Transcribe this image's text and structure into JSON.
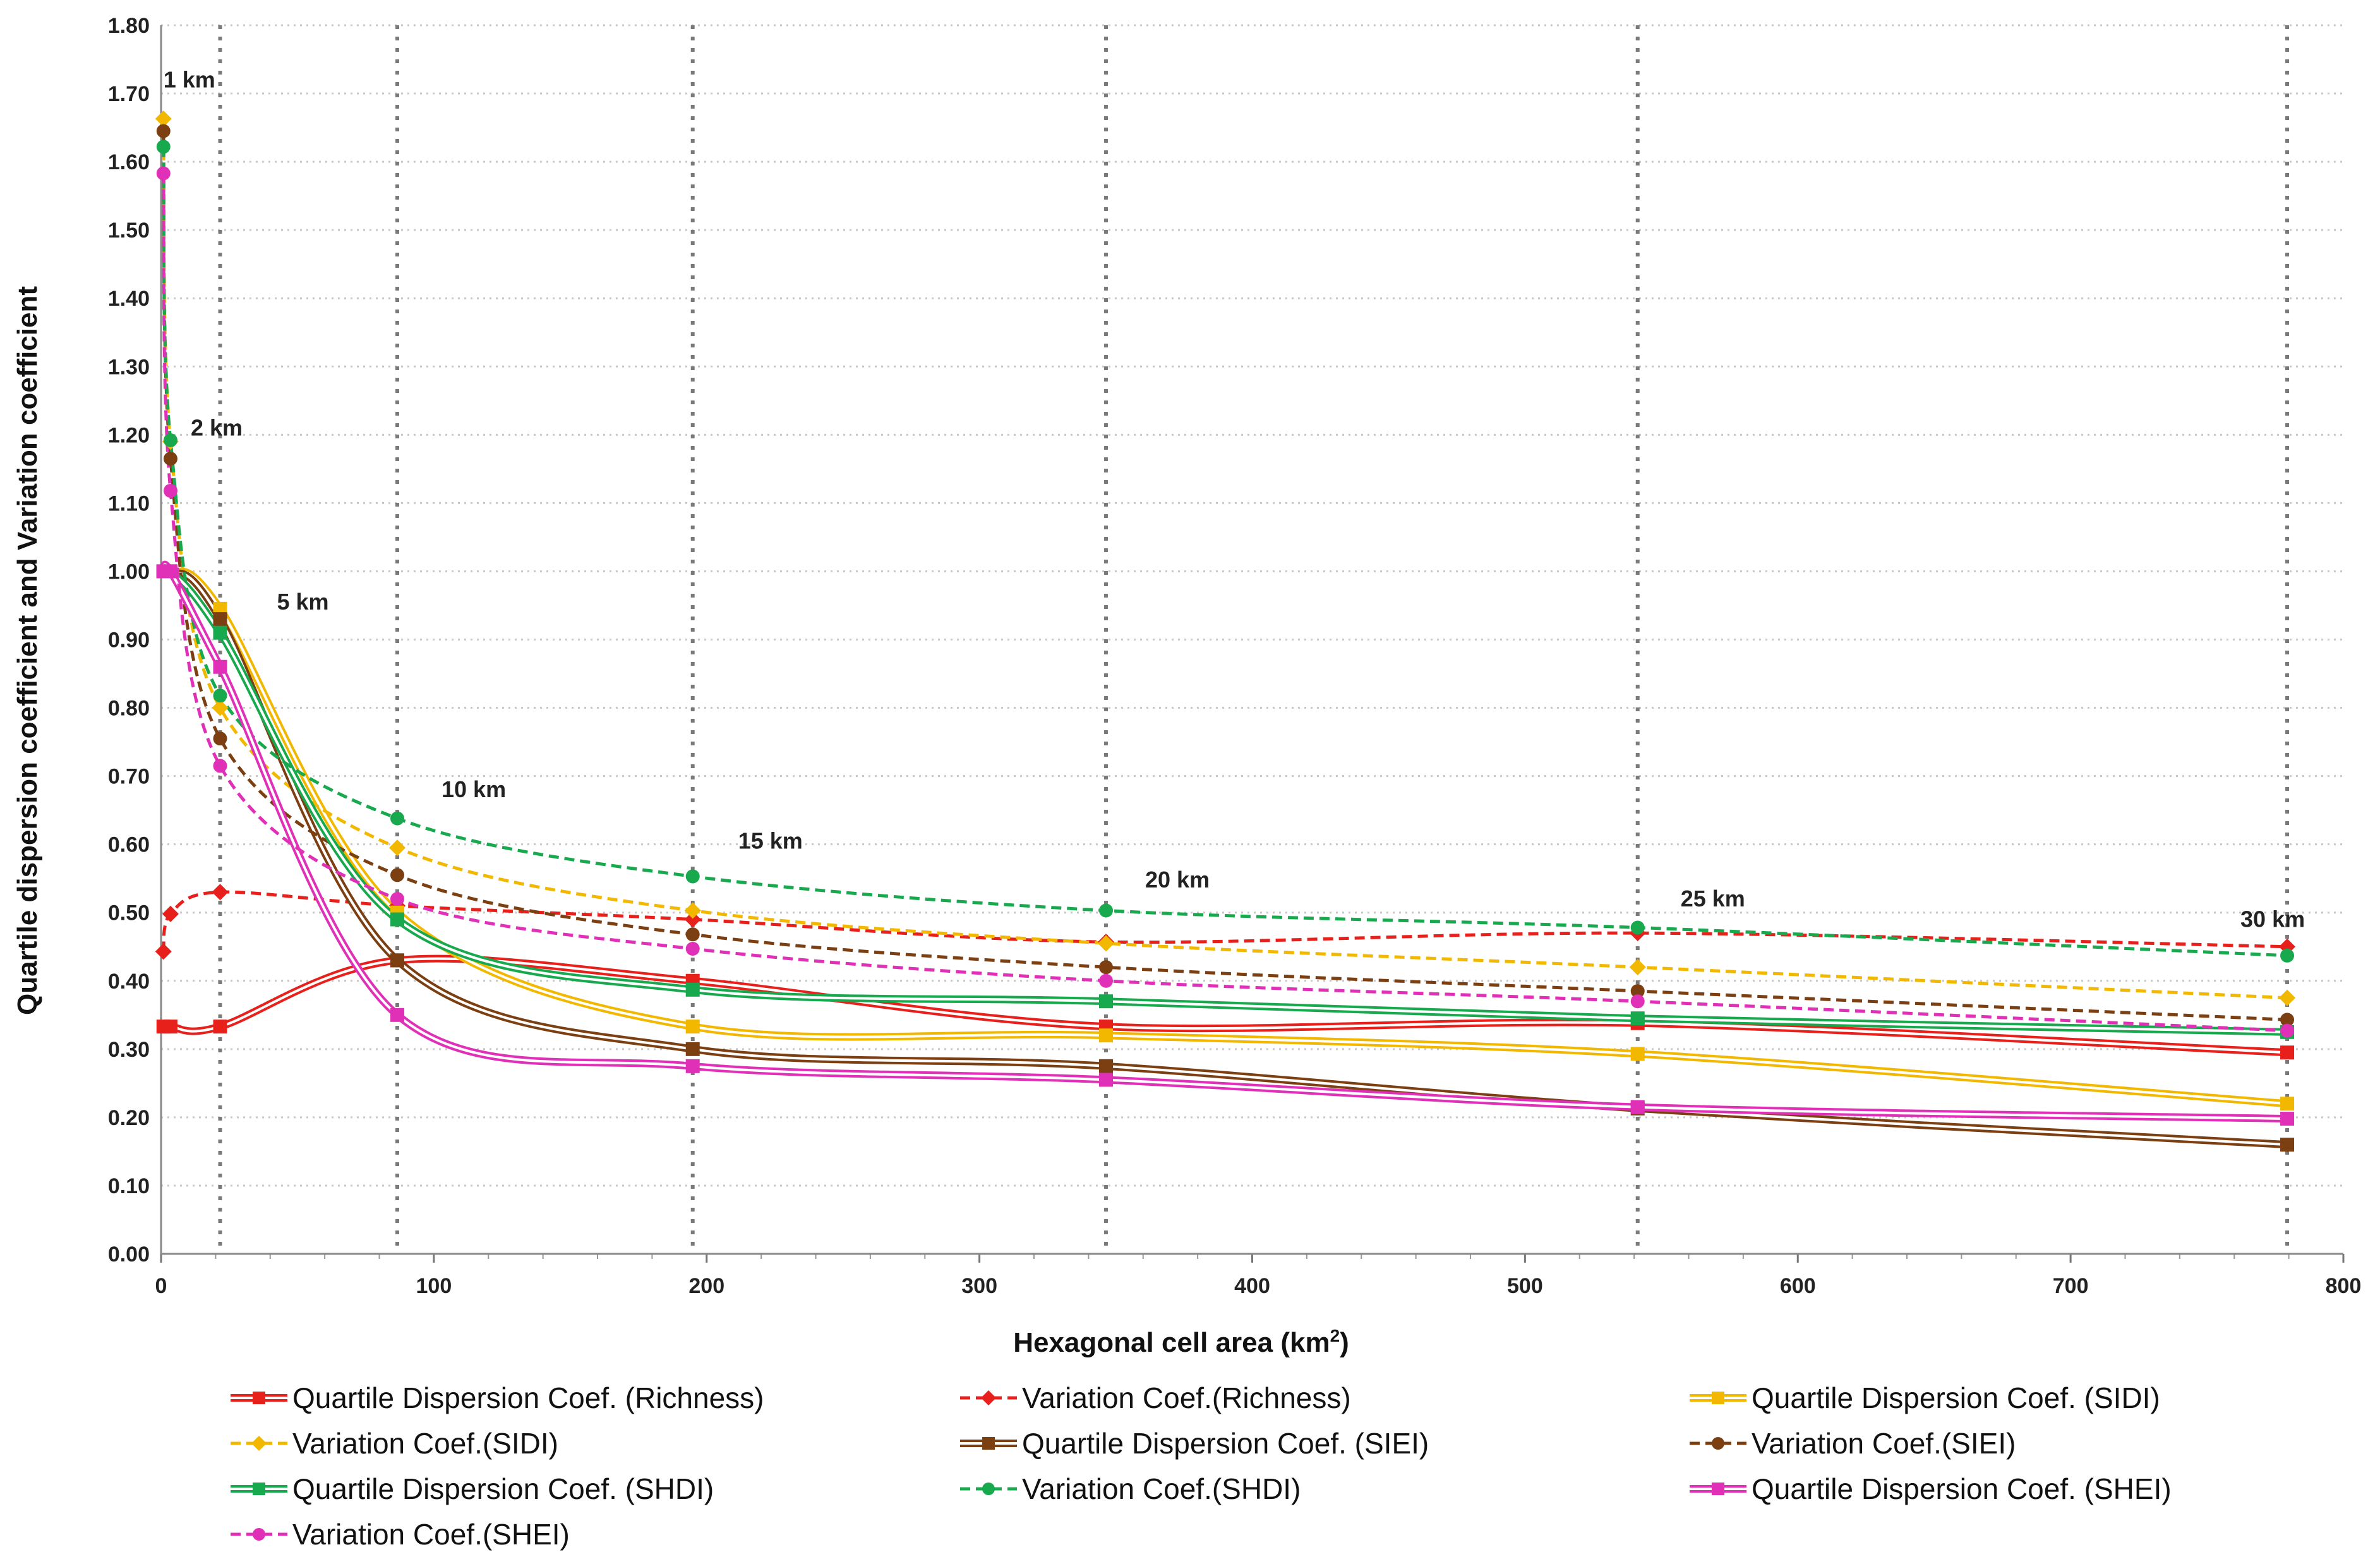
{
  "chart_data": {
    "type": "line",
    "title": "",
    "xlabel": "Hexagonal cell area (km",
    "xlabel_sup": "2",
    "xlabel_close": ")",
    "ylabel": "Quartile dispersion coefficient and Variation coefficient",
    "xlim": [
      0,
      800
    ],
    "ylim": [
      0,
      1.8
    ],
    "x_ticks": [
      "0",
      "100",
      "200",
      "300",
      "400",
      "500",
      "600",
      "700",
      "800"
    ],
    "y_ticks": [
      "0.00",
      "0.10",
      "0.20",
      "0.30",
      "0.40",
      "0.50",
      "0.60",
      "0.70",
      "0.80",
      "0.90",
      "1.00",
      "1.10",
      "1.20",
      "1.30",
      "1.40",
      "1.50",
      "1.60",
      "1.70",
      "1.80"
    ],
    "grid": "horizontal dotted gridlines, vertical dotted lines at cell sizes",
    "legend_position": "bottom",
    "x": [
      0.87,
      3.46,
      21.65,
      86.6,
      194.9,
      346.4,
      541.3,
      779.4
    ],
    "cell_labels": [
      "1 km",
      "2 km",
      "5 km",
      "10 km",
      "15 km",
      "20 km",
      "25 km",
      "30 km"
    ],
    "series": [
      {
        "name": "Quartile Dispersion Coef. (Richness)",
        "style": "double",
        "marker": "square",
        "color": "#e8201c",
        "values": [
          0.333,
          0.333,
          0.333,
          0.43,
          0.4,
          0.333,
          0.338,
          0.295
        ]
      },
      {
        "name": "Variation Coef.(Richness)",
        "style": "dashed",
        "marker": "diamond",
        "color": "#e8201c",
        "values": [
          0.443,
          0.498,
          0.53,
          0.51,
          0.49,
          0.457,
          0.47,
          0.45
        ]
      },
      {
        "name": "Quartile Dispersion Coef. (SIDI)",
        "style": "double",
        "marker": "square",
        "color": "#f2b800",
        "values": [
          1.0,
          1.0,
          0.945,
          0.5,
          0.333,
          0.32,
          0.293,
          0.22
        ]
      },
      {
        "name": "Variation Coef.(SIDI)",
        "style": "dashed",
        "marker": "diamond",
        "color": "#f2b800",
        "values": [
          1.663,
          1.19,
          0.8,
          0.595,
          0.503,
          0.455,
          0.42,
          0.375
        ]
      },
      {
        "name": "Quartile Dispersion Coef. (SIEI)",
        "style": "double",
        "marker": "square",
        "color": "#7b3f12",
        "values": [
          1.0,
          1.0,
          0.93,
          0.43,
          0.3,
          0.275,
          0.213,
          0.16
        ]
      },
      {
        "name": "Variation Coef.(SIEI)",
        "style": "dashed",
        "marker": "circle",
        "color": "#7b3f12",
        "values": [
          1.645,
          1.165,
          0.755,
          0.555,
          0.468,
          0.42,
          0.385,
          0.343
        ]
      },
      {
        "name": "Quartile Dispersion Coef. (SHDI)",
        "style": "double",
        "marker": "square",
        "color": "#18a84e",
        "values": [
          1.0,
          1.0,
          0.91,
          0.49,
          0.387,
          0.37,
          0.345,
          0.325
        ]
      },
      {
        "name": "Variation Coef.(SHDI)",
        "style": "dashed",
        "marker": "circle",
        "color": "#18a84e",
        "values": [
          1.622,
          1.192,
          0.818,
          0.638,
          0.553,
          0.503,
          0.478,
          0.437
        ]
      },
      {
        "name": "Quartile Dispersion Coef. (SHEI)",
        "style": "double",
        "marker": "square",
        "color": "#e030b8",
        "values": [
          1.0,
          1.0,
          0.86,
          0.35,
          0.275,
          0.255,
          0.215,
          0.198
        ]
      },
      {
        "name": "Variation Coef.(SHEI)",
        "style": "dashed",
        "marker": "circle",
        "color": "#e030b8",
        "values": [
          1.583,
          1.118,
          0.715,
          0.52,
          0.447,
          0.4,
          0.37,
          0.327
        ]
      }
    ]
  }
}
